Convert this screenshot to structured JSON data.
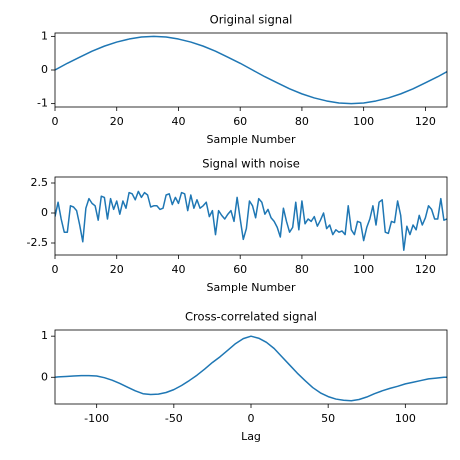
{
  "chart_data": [
    {
      "type": "line",
      "title": "Original signal",
      "x_label": "Sample Number",
      "x": [
        0,
        4,
        8,
        12,
        16,
        20,
        24,
        28,
        32,
        36,
        40,
        44,
        48,
        52,
        56,
        60,
        64,
        68,
        72,
        76,
        80,
        84,
        88,
        92,
        96,
        100,
        104,
        108,
        112,
        116,
        120,
        124,
        127
      ],
      "series": [
        {
          "color": "#1f77b4",
          "values": [
            0,
            0.2,
            0.38,
            0.56,
            0.71,
            0.83,
            0.92,
            0.98,
            1,
            0.98,
            0.92,
            0.83,
            0.71,
            0.56,
            0.38,
            0.2,
            0,
            -0.2,
            -0.38,
            -0.56,
            -0.71,
            -0.83,
            -0.92,
            -0.98,
            -1,
            -0.98,
            -0.92,
            -0.83,
            -0.71,
            -0.56,
            -0.38,
            -0.2,
            -0.05
          ]
        }
      ],
      "xlim": [
        0,
        127
      ],
      "xticks": [
        0,
        20,
        40,
        60,
        80,
        100,
        120
      ],
      "ylim": [
        -1.1,
        1.1
      ],
      "yticks": [
        -1,
        0,
        1
      ]
    },
    {
      "type": "line",
      "title": "Signal with noise",
      "x_label": "Sample Number",
      "x": [
        0,
        1,
        2,
        3,
        4,
        5,
        6,
        7,
        8,
        9,
        10,
        11,
        12,
        13,
        14,
        15,
        16,
        17,
        18,
        19,
        20,
        21,
        22,
        23,
        24,
        25,
        26,
        27,
        28,
        29,
        30,
        31,
        32,
        33,
        34,
        35,
        36,
        37,
        38,
        39,
        40,
        41,
        42,
        43,
        44,
        45,
        46,
        47,
        48,
        49,
        50,
        51,
        52,
        53,
        54,
        55,
        56,
        57,
        58,
        59,
        60,
        61,
        62,
        63,
        64,
        65,
        66,
        67,
        68,
        69,
        70,
        71,
        72,
        73,
        74,
        75,
        76,
        77,
        78,
        79,
        80,
        81,
        82,
        83,
        84,
        85,
        86,
        87,
        88,
        89,
        90,
        91,
        92,
        93,
        94,
        95,
        96,
        97,
        98,
        99,
        100,
        101,
        102,
        103,
        104,
        105,
        106,
        107,
        108,
        109,
        110,
        111,
        112,
        113,
        114,
        115,
        116,
        117,
        118,
        119,
        120,
        121,
        122,
        123,
        124,
        125,
        126,
        127
      ],
      "series": [
        {
          "color": "#1f77b4",
          "values": [
            -0.3,
            0.9,
            -0.5,
            -1.6,
            -1.6,
            0.6,
            0.5,
            0.2,
            -1.0,
            -2.4,
            0.4,
            1.2,
            0.8,
            0.6,
            -0.6,
            1.4,
            1.3,
            -0.5,
            1.2,
            0.3,
            1.0,
            -0.1,
            1.0,
            0.4,
            1.7,
            1.6,
            1.1,
            1.8,
            1.3,
            1.7,
            1.5,
            0.5,
            0.6,
            0.6,
            0.3,
            0.4,
            1.5,
            1.6,
            0.7,
            1.3,
            0.8,
            1.7,
            1.6,
            0.2,
            1.5,
            0.4,
            1.1,
            0.4,
            0.6,
            0.9,
            -0.3,
            0.2,
            -1.8,
            0.2,
            -0.2,
            -0.5,
            -0.1,
            0.2,
            -0.7,
            1.3,
            -0.5,
            -2.2,
            -1.3,
            1.0,
            0.6,
            -0.4,
            1.2,
            0.9,
            -0.1,
            0.3,
            -0.4,
            -0.7,
            -1.2,
            -2.0,
            0.4,
            -0.7,
            -1.6,
            -1.2,
            0.9,
            -1.4,
            1.0,
            -0.9,
            -0.5,
            -0.7,
            -0.3,
            -1.1,
            -0.6,
            0.0,
            -1.3,
            -1.0,
            -1.8,
            -1.4,
            -1.6,
            -1.5,
            -1.8,
            0.6,
            -1.4,
            -1.8,
            -0.7,
            -0.8,
            -2.3,
            -1.2,
            -0.5,
            0.6,
            -1.0,
            0.9,
            1.1,
            -1.6,
            -1.7,
            -0.7,
            -0.8,
            1.0,
            -0.2,
            -3.1,
            -1.1,
            -1.8,
            -1.0,
            -1.4,
            -0.2,
            -1.0,
            -0.4,
            0.6,
            0.3,
            -0.5,
            -0.5,
            1.2,
            -0.6,
            -0.5
          ]
        }
      ],
      "xlim": [
        0,
        127
      ],
      "xticks": [
        0,
        20,
        40,
        60,
        80,
        100,
        120
      ],
      "ylim": [
        -3.5,
        3.0
      ],
      "yticks": [
        -2.5,
        0.0,
        2.5
      ]
    },
    {
      "type": "line",
      "title": "Cross-correlated signal",
      "x_label": "Lag",
      "x": [
        -127,
        -125,
        -120,
        -115,
        -110,
        -105,
        -100,
        -95,
        -90,
        -85,
        -80,
        -75,
        -70,
        -65,
        -60,
        -55,
        -50,
        -45,
        -40,
        -35,
        -30,
        -25,
        -20,
        -15,
        -10,
        -5,
        0,
        5,
        10,
        15,
        20,
        25,
        30,
        35,
        40,
        45,
        50,
        55,
        60,
        65,
        70,
        75,
        80,
        85,
        90,
        95,
        100,
        105,
        110,
        115,
        120,
        125,
        127
      ],
      "series": [
        {
          "color": "#1f77b4",
          "values": [
            0.0,
            0.01,
            0.02,
            0.03,
            0.04,
            0.04,
            0.03,
            -0.01,
            -0.07,
            -0.15,
            -0.24,
            -0.33,
            -0.4,
            -0.42,
            -0.41,
            -0.37,
            -0.3,
            -0.2,
            -0.08,
            0.05,
            0.2,
            0.36,
            0.5,
            0.66,
            0.82,
            0.94,
            1,
            0.95,
            0.85,
            0.7,
            0.5,
            0.3,
            0.1,
            -0.08,
            -0.25,
            -0.38,
            -0.47,
            -0.53,
            -0.56,
            -0.57,
            -0.54,
            -0.48,
            -0.4,
            -0.33,
            -0.27,
            -0.22,
            -0.16,
            -0.12,
            -0.08,
            -0.04,
            -0.02,
            0.0,
            0.0
          ]
        }
      ],
      "xlim": [
        -127,
        127
      ],
      "xticks": [
        -100,
        -50,
        0,
        50,
        100
      ],
      "ylim": [
        -0.65,
        1.15
      ],
      "yticks": [
        0,
        1
      ]
    }
  ]
}
